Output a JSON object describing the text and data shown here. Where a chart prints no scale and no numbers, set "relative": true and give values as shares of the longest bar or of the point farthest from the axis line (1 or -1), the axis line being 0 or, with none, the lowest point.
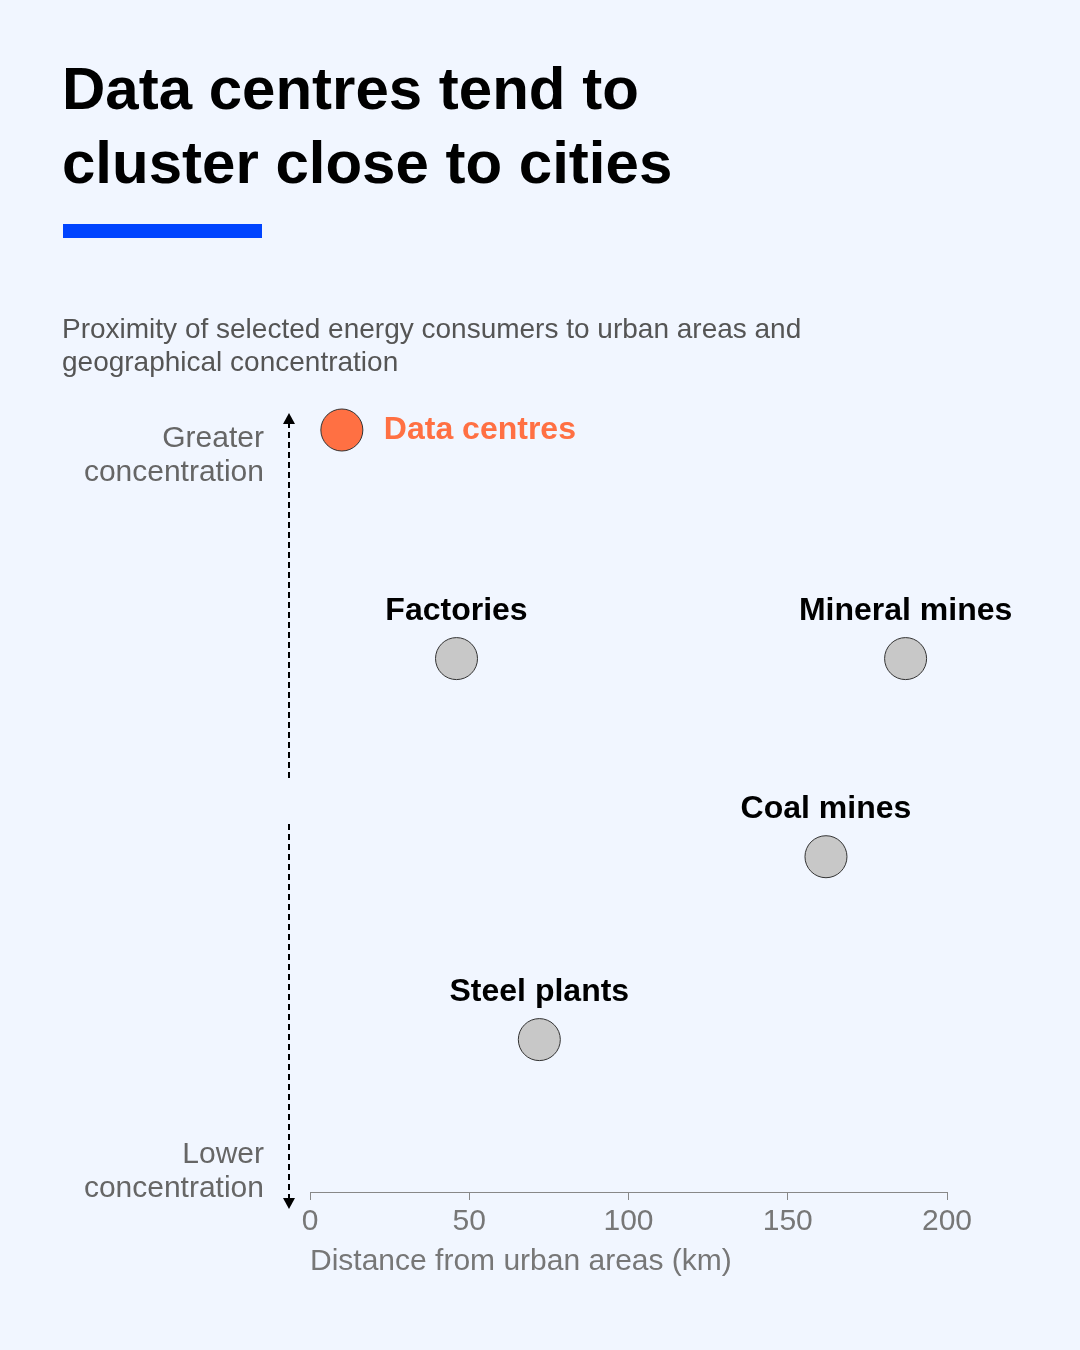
{
  "chart_data": {
    "type": "scatter",
    "title": "Data centres tend to cluster close to cities",
    "subtitle": "Proximity of selected energy consumers to urban areas and geographical concentration",
    "xlabel": "Distance from urban areas (km)",
    "annotations": [
      "Greater concentration",
      "Lower concentration",
      {
        "text": "Data centres",
        "x": 10,
        "y": 1
      },
      {
        "text": "Factories",
        "x": 46,
        "y": 0.7
      },
      {
        "text": "Mineral mines",
        "x": 187,
        "y": 0.7
      },
      {
        "text": "Coal mines",
        "x": 162,
        "y": 0.44
      },
      {
        "text": "Steel plants",
        "x": 72,
        "y": 0.2
      }
    ],
    "relative": true,
    "xlim": [
      0,
      200
    ],
    "xticks": [
      0,
      50,
      100,
      150,
      200
    ],
    "grid": false,
    "tick_labels": "x",
    "marker": "circle",
    "x": [
      10,
      46,
      187,
      162,
      72
    ],
    "values": [
      1,
      0.7,
      0.7,
      0.44,
      0.2
    ],
    "colors": [
      "#ff7043",
      "#c8c8c8",
      "#c8c8c8",
      "#c8c8c8",
      "#c8c8c8"
    ]
  }
}
